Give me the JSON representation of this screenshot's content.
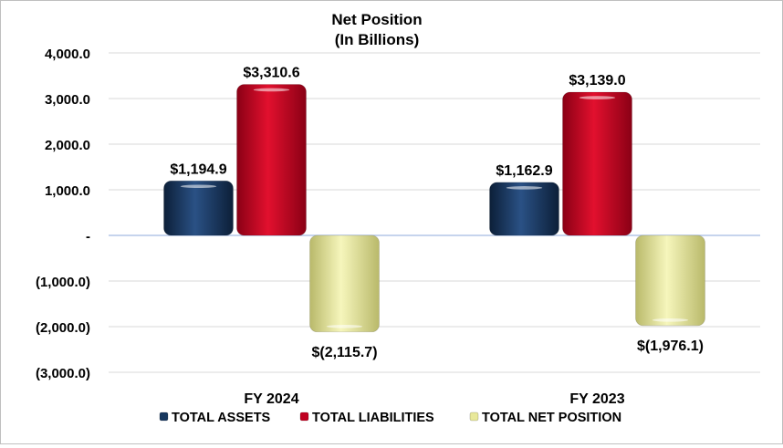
{
  "chart_data": {
    "type": "bar",
    "title": "Net Position",
    "subtitle": "(In Billions)",
    "categories": [
      "FY 2024",
      "FY 2023"
    ],
    "series": [
      {
        "name": "TOTAL ASSETS",
        "color": "#17375e",
        "values": [
          1194.9,
          1162.9
        ],
        "labels": [
          "$1,194.9",
          "$1,162.9"
        ]
      },
      {
        "name": "TOTAL LIABILITIES",
        "color": "#c00020",
        "values": [
          3310.6,
          3139.0
        ],
        "labels": [
          "$3,310.6",
          "$3,139.0"
        ]
      },
      {
        "name": "TOTAL NET POSITION",
        "color": "#e8e89a",
        "values": [
          -2115.7,
          -1976.1
        ],
        "labels": [
          "$(2,115.7)",
          "$(1,976.1)"
        ]
      }
    ],
    "yticks": [
      4000,
      3000,
      2000,
      1000,
      0,
      -1000,
      -2000,
      -3000
    ],
    "ytick_labels": [
      "4,000.0",
      "3,000.0",
      "2,000.0",
      "1,000.0",
      "-",
      "(1,000.0)",
      "(2,000.0)",
      "(3,000.0)"
    ],
    "ylim": [
      -3000,
      4000
    ],
    "grid": true,
    "legend_position": "bottom"
  }
}
